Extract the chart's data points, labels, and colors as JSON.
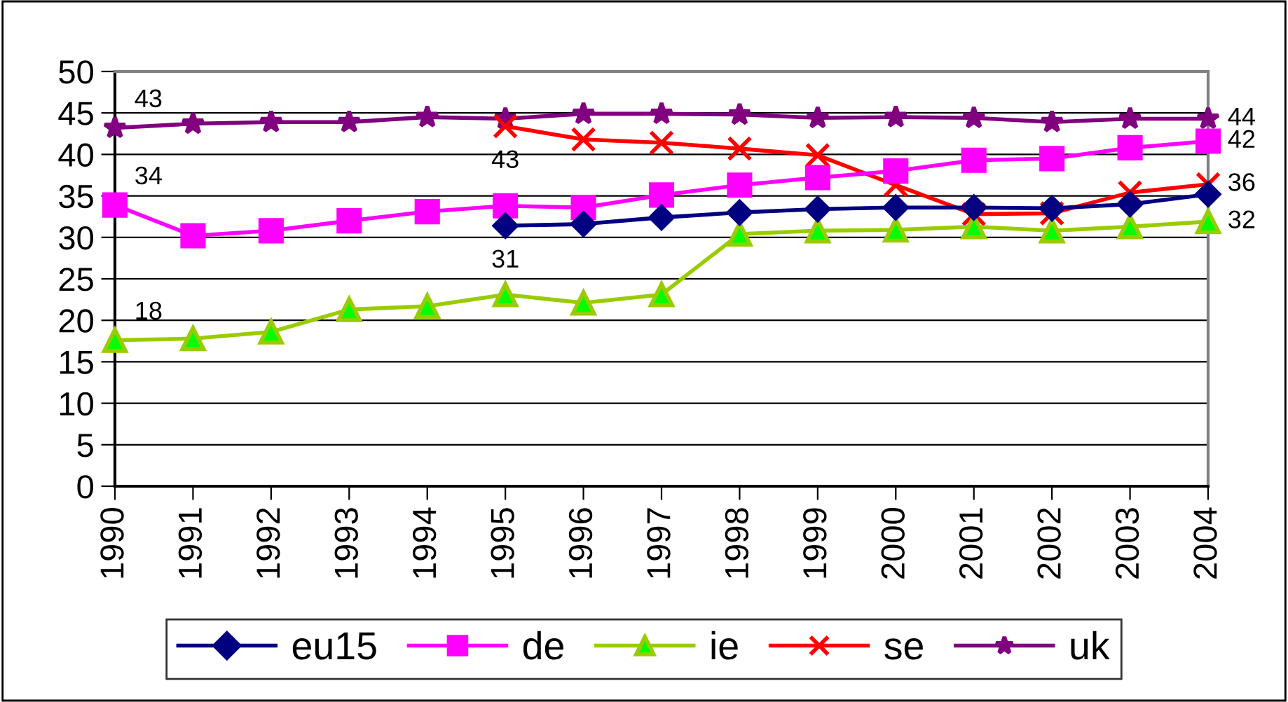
{
  "chart_data": {
    "type": "line",
    "categories": [
      "1990",
      "1991",
      "1992",
      "1993",
      "1994",
      "1995",
      "1996",
      "1997",
      "1998",
      "1999",
      "2000",
      "2001",
      "2002",
      "2003",
      "2004"
    ],
    "series": [
      {
        "name": "eu15",
        "color": "#000080",
        "marker": "diamond",
        "values": [
          null,
          null,
          null,
          null,
          null,
          31.4,
          31.6,
          32.4,
          33.0,
          33.4,
          33.6,
          33.6,
          33.5,
          34.0,
          35.2
        ],
        "value_labels": [
          null,
          null,
          null,
          null,
          null,
          "31",
          null,
          null,
          null,
          null,
          null,
          null,
          null,
          null,
          null
        ]
      },
      {
        "name": "de",
        "color": "#ff00ff",
        "marker": "square",
        "values": [
          33.9,
          30.2,
          30.8,
          32.0,
          33.1,
          33.8,
          33.6,
          35.1,
          36.3,
          37.2,
          38.0,
          39.3,
          39.5,
          40.8,
          41.6
        ],
        "value_labels": [
          "34",
          null,
          null,
          null,
          null,
          null,
          null,
          null,
          null,
          null,
          null,
          null,
          null,
          null,
          "42"
        ]
      },
      {
        "name": "ie",
        "color": "#99cc00",
        "marker": "triangle",
        "values": [
          17.6,
          17.8,
          18.6,
          21.3,
          21.7,
          23.1,
          22.1,
          23.1,
          30.4,
          30.8,
          30.9,
          31.3,
          30.8,
          31.3,
          31.9
        ],
        "value_labels": [
          "18",
          null,
          null,
          null,
          null,
          null,
          null,
          null,
          null,
          null,
          null,
          null,
          null,
          null,
          "32"
        ]
      },
      {
        "name": "se",
        "color": "#ff0000",
        "marker": "cross",
        "values": [
          null,
          null,
          null,
          null,
          null,
          43.4,
          41.8,
          41.4,
          40.7,
          39.9,
          36.3,
          32.8,
          32.9,
          35.4,
          36.4
        ],
        "value_labels": [
          null,
          null,
          null,
          null,
          null,
          "43",
          null,
          null,
          null,
          null,
          null,
          null,
          null,
          null,
          "36"
        ]
      },
      {
        "name": "uk",
        "color": "#800080",
        "marker": "star",
        "values": [
          43.2,
          43.7,
          43.9,
          43.9,
          44.5,
          44.3,
          44.9,
          44.9,
          44.8,
          44.4,
          44.5,
          44.4,
          43.9,
          44.3,
          44.3
        ],
        "value_labels": [
          "43",
          null,
          null,
          null,
          null,
          null,
          null,
          null,
          null,
          null,
          null,
          null,
          null,
          null,
          "44"
        ]
      }
    ],
    "ylim": [
      0,
      50
    ],
    "yticks": [
      0,
      5,
      10,
      15,
      20,
      25,
      30,
      35,
      40,
      45,
      50
    ],
    "grid": "y",
    "legend": "bottom",
    "line_style": "solid"
  }
}
